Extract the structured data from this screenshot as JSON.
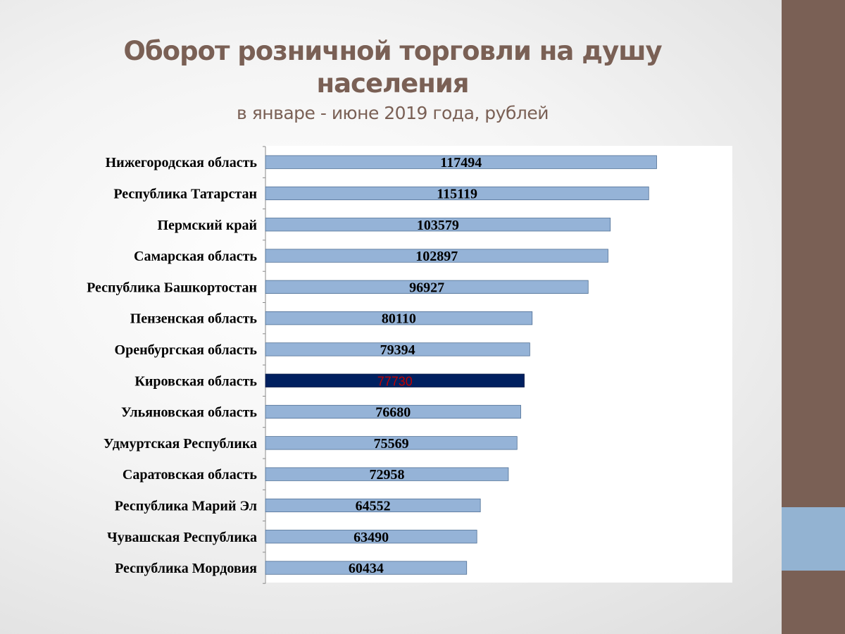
{
  "title": "Оборот розничной торговли на душу населения",
  "subtitle": "в январе - июне 2019 года, рублей",
  "colors": {
    "bar": "#95b3d7",
    "bar_highlight": "#002060",
    "highlight_text": "#c00000",
    "title": "#7a6055",
    "side_bar": "#7a6055",
    "side_accent": "#93b3d2"
  },
  "chart_data": {
    "type": "bar",
    "orientation": "horizontal",
    "title": "Оборот розничной торговли на душу населения",
    "subtitle": "в январе - июне 2019 года, рублей",
    "categories": [
      "Нижегородская область",
      "Республика Татарстан",
      "Пермский край",
      "Самарская область",
      "Республика Башкортостан",
      "Пензенская область",
      "Оренбургская область",
      "Кировская область",
      "Ульяновская область",
      "Удмуртская Республика",
      "Саратовская область",
      "Республика  Марий Эл",
      "Чувашская Республика",
      "Республика Мордовия"
    ],
    "values": [
      117494,
      115119,
      103579,
      102897,
      96927,
      80110,
      79394,
      77730,
      76680,
      75569,
      72958,
      64552,
      63490,
      60434
    ],
    "highlight_category": "Кировская область",
    "xlim": [
      0,
      140000
    ],
    "grid": false,
    "legend": "none",
    "data_labels": true
  }
}
